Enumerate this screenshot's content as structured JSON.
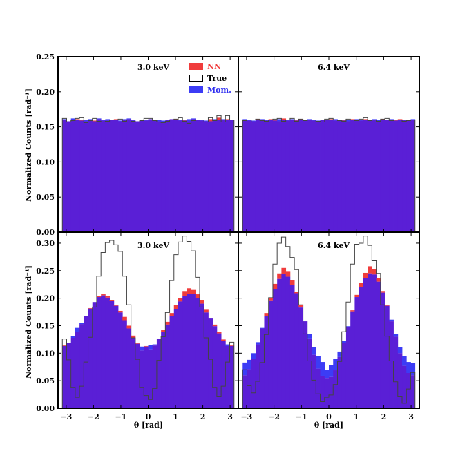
{
  "chart_data": {
    "type": "histogram-grid",
    "x_tick_labels": [
      "−3",
      "−2",
      "−1",
      "0",
      "1",
      "2",
      "3"
    ],
    "x_ticks": [
      -3,
      -2,
      -1,
      0,
      1,
      2,
      3
    ],
    "xlim": [
      -3.3,
      3.3
    ],
    "xlabel": "θ [rad]",
    "ylabel": "Normalized Counts [rad⁻¹]",
    "top_row": {
      "ylim": [
        0.0,
        0.25
      ],
      "y_ticks": [
        0.0,
        0.05,
        0.1,
        0.15,
        0.2,
        0.25
      ],
      "y_tick_labels": [
        "0.00",
        "0.05",
        "0.10",
        "0.15",
        "0.20",
        "0.25"
      ]
    },
    "bottom_row": {
      "ylim": [
        0.0,
        0.32
      ],
      "y_ticks": [
        0.0,
        0.05,
        0.1,
        0.15,
        0.2,
        0.25,
        0.3
      ],
      "y_tick_labels": [
        "0.00",
        "0.05",
        "0.10",
        "0.15",
        "0.20",
        "0.25",
        "0.30"
      ]
    },
    "legend": [
      {
        "key": "nn",
        "label": "NN",
        "color": "#f03c3c"
      },
      {
        "key": "true",
        "label": "True",
        "color": "#000000"
      },
      {
        "key": "mom",
        "label": "Mom.",
        "color": "#2f2ff0"
      }
    ],
    "colors": {
      "nn": "#f03c3c",
      "mom": "#3c3cf5",
      "overlap": "#5a1fd6",
      "true": "#444444"
    },
    "bins": {
      "count": 40,
      "range": [
        -3.14159,
        3.14159
      ]
    },
    "panels": [
      {
        "id": "top-left",
        "title": "3.0 keV",
        "row": "top",
        "true": [
          0.162,
          0.157,
          0.159,
          0.162,
          0.163,
          0.156,
          0.159,
          0.162,
          0.158,
          0.157,
          0.158,
          0.16,
          0.16,
          0.161,
          0.158,
          0.16,
          0.158,
          0.157,
          0.159,
          0.162,
          0.162,
          0.159,
          0.157,
          0.156,
          0.158,
          0.16,
          0.161,
          0.163,
          0.158,
          0.155,
          0.159,
          0.16,
          0.16,
          0.157,
          0.163,
          0.159,
          0.166,
          0.157,
          0.166,
          0.16
        ],
        "nn": [
          0.16,
          0.158,
          0.16,
          0.161,
          0.16,
          0.158,
          0.16,
          0.159,
          0.161,
          0.159,
          0.159,
          0.16,
          0.161,
          0.158,
          0.16,
          0.161,
          0.159,
          0.158,
          0.16,
          0.159,
          0.161,
          0.16,
          0.158,
          0.157,
          0.16,
          0.161,
          0.161,
          0.159,
          0.16,
          0.158,
          0.161,
          0.16,
          0.159,
          0.158,
          0.161,
          0.16,
          0.163,
          0.16,
          0.161,
          0.16
        ],
        "mom": [
          0.161,
          0.158,
          0.162,
          0.16,
          0.159,
          0.16,
          0.161,
          0.158,
          0.162,
          0.16,
          0.161,
          0.16,
          0.16,
          0.159,
          0.161,
          0.162,
          0.16,
          0.158,
          0.159,
          0.16,
          0.161,
          0.159,
          0.16,
          0.159,
          0.16,
          0.161,
          0.16,
          0.16,
          0.159,
          0.161,
          0.162,
          0.16,
          0.16,
          0.159,
          0.158,
          0.161,
          0.16,
          0.161,
          0.16,
          0.16
        ]
      },
      {
        "id": "top-right",
        "title": "6.4 keV",
        "row": "top",
        "true": [
          0.159,
          0.157,
          0.16,
          0.161,
          0.159,
          0.158,
          0.16,
          0.161,
          0.162,
          0.158,
          0.16,
          0.162,
          0.158,
          0.161,
          0.159,
          0.16,
          0.16,
          0.158,
          0.157,
          0.161,
          0.162,
          0.16,
          0.159,
          0.158,
          0.161,
          0.16,
          0.159,
          0.161,
          0.163,
          0.159,
          0.16,
          0.158,
          0.161,
          0.162,
          0.159,
          0.16,
          0.16,
          0.158,
          0.159,
          0.16
        ],
        "nn": [
          0.16,
          0.159,
          0.158,
          0.161,
          0.16,
          0.159,
          0.161,
          0.16,
          0.158,
          0.162,
          0.159,
          0.16,
          0.16,
          0.161,
          0.159,
          0.16,
          0.159,
          0.158,
          0.16,
          0.16,
          0.161,
          0.159,
          0.16,
          0.16,
          0.158,
          0.161,
          0.16,
          0.159,
          0.161,
          0.16,
          0.16,
          0.158,
          0.161,
          0.16,
          0.159,
          0.16,
          0.161,
          0.16,
          0.159,
          0.16
        ],
        "mom": [
          0.161,
          0.16,
          0.159,
          0.16,
          0.161,
          0.16,
          0.16,
          0.159,
          0.161,
          0.16,
          0.16,
          0.161,
          0.159,
          0.16,
          0.16,
          0.161,
          0.16,
          0.159,
          0.16,
          0.16,
          0.16,
          0.161,
          0.16,
          0.159,
          0.16,
          0.16,
          0.161,
          0.16,
          0.16,
          0.159,
          0.161,
          0.16,
          0.16,
          0.16,
          0.161,
          0.159,
          0.16,
          0.16,
          0.16,
          0.161
        ]
      },
      {
        "id": "bottom-left",
        "title": "3.0 keV",
        "row": "bottom",
        "true": [
          0.126,
          0.088,
          0.038,
          0.02,
          0.04,
          0.084,
          0.129,
          0.184,
          0.24,
          0.283,
          0.301,
          0.305,
          0.297,
          0.285,
          0.24,
          0.188,
          0.128,
          0.089,
          0.038,
          0.023,
          0.016,
          0.036,
          0.087,
          0.13,
          0.174,
          0.232,
          0.279,
          0.302,
          0.313,
          0.303,
          0.286,
          0.238,
          0.184,
          0.128,
          0.089,
          0.038,
          0.022,
          0.04,
          0.084,
          0.12
        ],
        "nn": [
          0.114,
          0.118,
          0.128,
          0.139,
          0.153,
          0.168,
          0.182,
          0.193,
          0.204,
          0.207,
          0.204,
          0.197,
          0.188,
          0.177,
          0.166,
          0.15,
          0.132,
          0.118,
          0.105,
          0.113,
          0.107,
          0.114,
          0.126,
          0.142,
          0.157,
          0.173,
          0.188,
          0.2,
          0.213,
          0.218,
          0.215,
          0.207,
          0.197,
          0.179,
          0.164,
          0.152,
          0.138,
          0.125,
          0.113,
          0.114
        ],
        "mom": [
          0.113,
          0.119,
          0.131,
          0.146,
          0.155,
          0.167,
          0.181,
          0.193,
          0.202,
          0.205,
          0.201,
          0.195,
          0.186,
          0.174,
          0.16,
          0.145,
          0.128,
          0.117,
          0.112,
          0.112,
          0.115,
          0.116,
          0.126,
          0.139,
          0.152,
          0.167,
          0.18,
          0.194,
          0.204,
          0.208,
          0.208,
          0.2,
          0.19,
          0.174,
          0.163,
          0.149,
          0.136,
          0.122,
          0.116,
          0.113
        ]
      },
      {
        "id": "bottom-right",
        "title": "6.4 keV",
        "row": "bottom",
        "true": [
          0.07,
          0.041,
          0.028,
          0.049,
          0.083,
          0.134,
          0.201,
          0.262,
          0.3,
          0.311,
          0.294,
          0.274,
          0.252,
          0.188,
          0.135,
          0.086,
          0.051,
          0.026,
          0.012,
          0.02,
          0.024,
          0.043,
          0.085,
          0.139,
          0.193,
          0.262,
          0.298,
          0.3,
          0.313,
          0.296,
          0.268,
          0.245,
          0.188,
          0.131,
          0.086,
          0.048,
          0.022,
          0.009,
          0.035,
          0.065
        ],
        "nn": [
          0.06,
          0.071,
          0.09,
          0.116,
          0.145,
          0.173,
          0.2,
          0.226,
          0.245,
          0.255,
          0.248,
          0.233,
          0.211,
          0.187,
          0.159,
          0.127,
          0.097,
          0.072,
          0.059,
          0.055,
          0.058,
          0.069,
          0.093,
          0.119,
          0.148,
          0.178,
          0.206,
          0.228,
          0.246,
          0.258,
          0.253,
          0.236,
          0.213,
          0.188,
          0.158,
          0.13,
          0.1,
          0.077,
          0.064,
          0.06
        ],
        "mom": [
          0.083,
          0.088,
          0.1,
          0.12,
          0.146,
          0.167,
          0.196,
          0.216,
          0.235,
          0.244,
          0.239,
          0.224,
          0.209,
          0.183,
          0.158,
          0.135,
          0.111,
          0.095,
          0.084,
          0.07,
          0.078,
          0.09,
          0.103,
          0.122,
          0.149,
          0.176,
          0.202,
          0.22,
          0.237,
          0.245,
          0.243,
          0.23,
          0.21,
          0.186,
          0.161,
          0.135,
          0.111,
          0.095,
          0.084,
          0.082
        ]
      }
    ]
  }
}
